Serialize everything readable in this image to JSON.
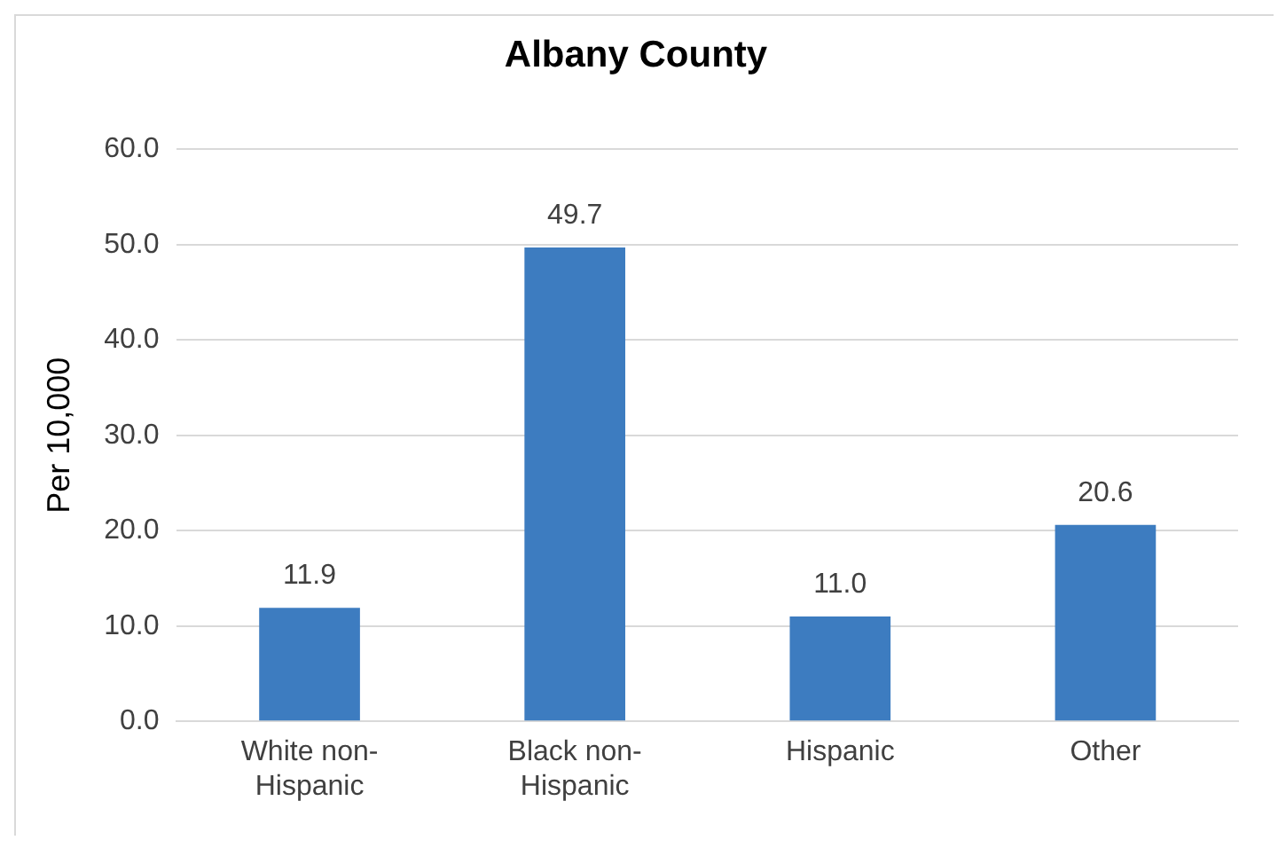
{
  "chart_data": {
    "type": "bar",
    "title": "Albany County",
    "ylabel": "Per 10,000",
    "categories": [
      "White non-Hispanic",
      "Black non-Hispanic",
      "Hispanic",
      "Other"
    ],
    "values": [
      11.9,
      49.7,
      11.0,
      20.6
    ],
    "color": "#3d7cc0",
    "ylim": [
      0,
      60
    ],
    "yticks": [
      {
        "value": 0,
        "label": "0.0"
      },
      {
        "value": 10,
        "label": "10.0"
      },
      {
        "value": 20,
        "label": "20.0"
      },
      {
        "value": 30,
        "label": "30.0"
      },
      {
        "value": 40,
        "label": "40.0"
      },
      {
        "value": 50,
        "label": "50.0"
      },
      {
        "value": 60,
        "label": "60.0"
      }
    ],
    "value_labels": [
      "11.9",
      "49.7",
      "11.0",
      "20.6"
    ],
    "grid": "y",
    "legend": false
  }
}
